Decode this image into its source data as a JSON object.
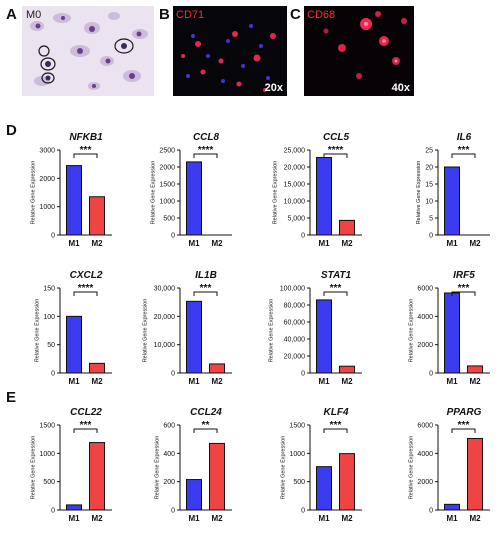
{
  "figure": {
    "panel_letters": {
      "a": "A",
      "b": "B",
      "c": "C",
      "d": "D",
      "e": "E"
    },
    "micrographs": [
      {
        "label": "M0",
        "magnification": ""
      },
      {
        "label": "CD71",
        "magnification": "20x"
      },
      {
        "label": "CD68",
        "magnification": "40x"
      }
    ]
  },
  "colors": {
    "m1": "#3b3bf0",
    "m2": "#ef4444",
    "axis": "#111111",
    "stain_red": "#ff2a2a"
  },
  "chart_data": [
    {
      "type": "bar",
      "panel": "D",
      "title": "NFKB1",
      "categories": [
        "M1",
        "M2"
      ],
      "values": [
        2450,
        1350
      ],
      "ylim": [
        0,
        3000
      ],
      "ticks": [
        "0",
        "1000",
        "2000",
        "3000"
      ],
      "ylabel": "Relative Gene Expression",
      "significance": "***"
    },
    {
      "type": "bar",
      "panel": "D",
      "title": "CCL8",
      "categories": [
        "M1",
        "M2"
      ],
      "values": [
        2150,
        0
      ],
      "ylim": [
        0,
        2500
      ],
      "ticks": [
        "0",
        "500",
        "1000",
        "1500",
        "2000",
        "2500"
      ],
      "ylabel": "Relative Gene Expression",
      "significance": "****"
    },
    {
      "type": "bar",
      "panel": "D",
      "title": "CCL5",
      "categories": [
        "M1",
        "M2"
      ],
      "values": [
        22800,
        4300
      ],
      "ylim": [
        0,
        25000
      ],
      "ticks": [
        "0",
        "5,000",
        "10,000",
        "15,000",
        "20,000",
        "25,000"
      ],
      "ylabel": "Relative Gene Expression",
      "significance": "****"
    },
    {
      "type": "bar",
      "panel": "D",
      "title": "IL6",
      "categories": [
        "M1",
        "M2"
      ],
      "values": [
        20,
        0
      ],
      "ylim": [
        0,
        25
      ],
      "ticks": [
        "0",
        "5",
        "10",
        "15",
        "20",
        "25"
      ],
      "ylabel": "Relative Gene Expression",
      "significance": "***"
    },
    {
      "type": "bar",
      "panel": "D",
      "title": "CXCL2",
      "categories": [
        "M1",
        "M2"
      ],
      "values": [
        100,
        17
      ],
      "ylim": [
        0,
        150
      ],
      "ticks": [
        "0",
        "50",
        "100",
        "150"
      ],
      "ylabel": "Relative Gene Expression",
      "significance": "****"
    },
    {
      "type": "bar",
      "panel": "D",
      "title": "IL1B",
      "categories": [
        "M1",
        "M2"
      ],
      "values": [
        25300,
        3200
      ],
      "ylim": [
        0,
        30000
      ],
      "ticks": [
        "0",
        "10,000",
        "20,000",
        "30,000"
      ],
      "ylabel": "Relative Gene Expression",
      "significance": "***"
    },
    {
      "type": "bar",
      "panel": "D",
      "title": "STAT1",
      "categories": [
        "M1",
        "M2"
      ],
      "values": [
        86000,
        8000
      ],
      "ylim": [
        0,
        100000
      ],
      "ticks": [
        "0",
        "20,000",
        "40,000",
        "60,000",
        "80,000",
        "100,000"
      ],
      "ylabel": "Relative Gene Expression",
      "significance": "***"
    },
    {
      "type": "bar",
      "panel": "D",
      "title": "IRF5",
      "categories": [
        "M1",
        "M2"
      ],
      "values": [
        5650,
        500
      ],
      "ylim": [
        0,
        6000
      ],
      "ticks": [
        "0",
        "2000",
        "4000",
        "6000"
      ],
      "ylabel": "Relative Gene Expression",
      "significance": "***"
    },
    {
      "type": "bar",
      "panel": "E",
      "title": "CCL22",
      "categories": [
        "M1",
        "M2"
      ],
      "values": [
        90,
        1190
      ],
      "ylim": [
        0,
        1500
      ],
      "ticks": [
        "0",
        "500",
        "1000",
        "1500"
      ],
      "ylabel": "Relative Gene Expression",
      "significance": "***"
    },
    {
      "type": "bar",
      "panel": "E",
      "title": "CCL24",
      "categories": [
        "M1",
        "M2"
      ],
      "values": [
        215,
        470
      ],
      "ylim": [
        0,
        600
      ],
      "ticks": [
        "0",
        "200",
        "400",
        "600"
      ],
      "ylabel": "Relative Gene Expression",
      "significance": "**"
    },
    {
      "type": "bar",
      "panel": "E",
      "title": "KLF4",
      "categories": [
        "M1",
        "M2"
      ],
      "values": [
        765,
        995
      ],
      "ylim": [
        0,
        1500
      ],
      "ticks": [
        "0",
        "500",
        "1000",
        "1500"
      ],
      "ylabel": "Relative Gene Expression",
      "significance": "***"
    },
    {
      "type": "bar",
      "panel": "E",
      "title": "PPARG",
      "categories": [
        "M1",
        "M2"
      ],
      "values": [
        400,
        5050
      ],
      "ylim": [
        0,
        6000
      ],
      "ticks": [
        "0",
        "2000",
        "4000",
        "6000"
      ],
      "ylabel": "Relative Gene Expression",
      "significance": "***"
    }
  ]
}
